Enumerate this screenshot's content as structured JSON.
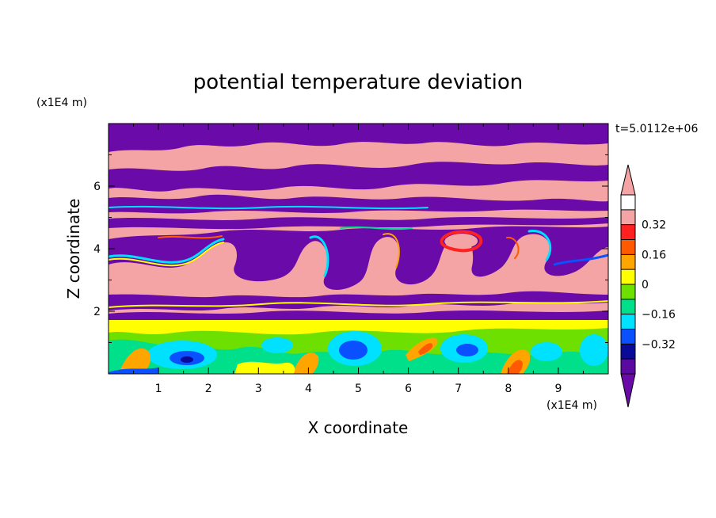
{
  "chart_data": {
    "type": "heatmap",
    "title": "potential temperature deviation",
    "xlabel": "X coordinate",
    "ylabel": "Z coordinate",
    "x_unit": "(x1E4 m)",
    "y_unit": "(x1E4 m)",
    "time_label": "t=5.0112e+06",
    "xlim": [
      0,
      10
    ],
    "ylim": [
      0,
      8
    ],
    "x_ticks": [
      1,
      2,
      3,
      4,
      5,
      6,
      7,
      8,
      9
    ],
    "y_ticks": [
      2,
      4,
      6
    ],
    "colorbar": {
      "levels": [
        -0.48,
        -0.4,
        -0.32,
        -0.24,
        -0.16,
        -0.08,
        0,
        0.08,
        0.16,
        0.24,
        0.32,
        0.4,
        0.48
      ],
      "tick_values": [
        -0.32,
        -0.16,
        0,
        0.16,
        0.32
      ],
      "tick_labels": [
        "−0.32",
        "−0.16",
        "0",
        "0.16",
        "0.32"
      ],
      "colors": [
        "#5a0aa0",
        "#0a0a9a",
        "#0a50ff",
        "#00e0ff",
        "#00e08a",
        "#6de000",
        "#ffff00",
        "#ffa500",
        "#ff5a00",
        "#ff2020",
        "#f4a4a4"
      ],
      "under_color": "#6a0aa8",
      "over_color": "#f4a4a4",
      "extend": "both"
    }
  }
}
